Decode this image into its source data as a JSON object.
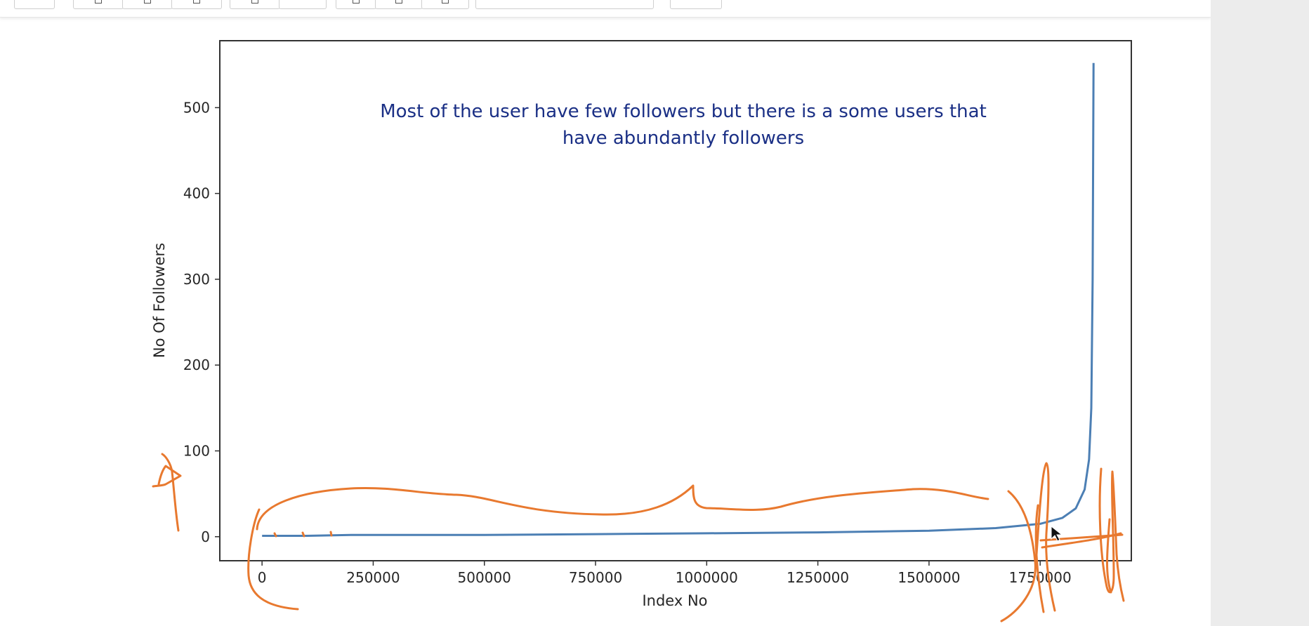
{
  "chart_data": {
    "type": "line",
    "title": "",
    "xlabel": "Index No",
    "ylabel": "No Of Followers",
    "xlim": [
      -95000,
      1955000
    ],
    "ylim": [
      -28,
      578
    ],
    "xticks": [
      0,
      250000,
      500000,
      750000,
      1000000,
      1250000,
      1500000,
      1750000
    ],
    "xtick_labels": [
      "0",
      "250000",
      "500000",
      "750000",
      "1000000",
      "1250000",
      "1500000",
      "1750000"
    ],
    "yticks": [
      0,
      100,
      200,
      300,
      400,
      500
    ],
    "ytick_labels": [
      "0",
      "100",
      "200",
      "300",
      "400",
      "500"
    ],
    "grid": false,
    "series": [
      {
        "color": "#4c7fb4",
        "x": [
          0,
          100000,
          200000,
          500000,
          750000,
          1000000,
          1250000,
          1500000,
          1650000,
          1750000,
          1800000,
          1830000,
          1850000,
          1860000,
          1865000,
          1868000,
          1870000
        ],
        "y": [
          1,
          1,
          2,
          2,
          3,
          4,
          5,
          7,
          10,
          15,
          22,
          33,
          55,
          90,
          150,
          300,
          552
        ]
      }
    ]
  },
  "annotation": {
    "color": "#1a2f85",
    "lines": [
      "Most of the user have few followers but there is a some users that",
      "have abundantly followers"
    ]
  },
  "ink_color": "#e8792f"
}
